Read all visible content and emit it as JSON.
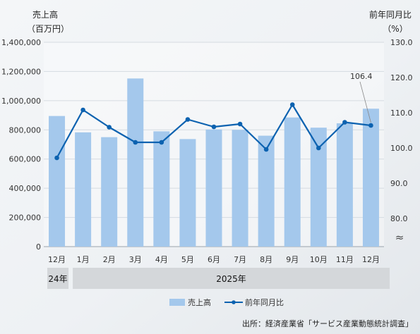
{
  "chart_data": {
    "type": "bar+line",
    "categories": [
      "12月",
      "1月",
      "2月",
      "3月",
      "4月",
      "5月",
      "6月",
      "7月",
      "8月",
      "9月",
      "10月",
      "11月",
      "12月"
    ],
    "year_groups": [
      {
        "label": "24年",
        "count": 1
      },
      {
        "label": "2025年",
        "count": 12
      }
    ],
    "series": [
      {
        "name": "売上高",
        "kind": "bar",
        "axis": "left",
        "color": "#a4c8ec",
        "values": [
          895000,
          783000,
          750000,
          1152000,
          790000,
          737000,
          803000,
          800000,
          760000,
          885000,
          815000,
          845000,
          945000
        ]
      },
      {
        "name": "前年同月比",
        "kind": "line",
        "axis": "right",
        "color": "#0c62b0",
        "values": [
          97.2,
          110.8,
          105.9,
          101.6,
          101.6,
          108.1,
          106.0,
          106.8,
          99.6,
          112.3,
          100.0,
          107.3,
          106.4
        ]
      }
    ],
    "y_left": {
      "title_line1": "売上高",
      "title_line2": "（百万円）",
      "min": 0,
      "max": 1400000,
      "ticks": [
        "0",
        "200,000",
        "400,000",
        "600,000",
        "800,000",
        "1,000,000",
        "1,200,000",
        "1,400,000"
      ]
    },
    "y_right": {
      "title_line1": "前年同月比",
      "title_line2": "（%）",
      "min": 72.0,
      "max": 130.0,
      "ticks": [
        {
          "value": 80.0,
          "label": "80.0"
        },
        {
          "value": 90.0,
          "label": "90.0"
        },
        {
          "value": 100.0,
          "label": "100.0"
        },
        {
          "value": 110.0,
          "label": "110.0"
        },
        {
          "value": 120.0,
          "label": "120.0"
        },
        {
          "value": 130.0,
          "label": "130.0"
        }
      ],
      "break_symbol": "≈"
    },
    "annotation": {
      "text": "106.4",
      "series": "前年同月比",
      "index": 12
    },
    "legend": {
      "position": "bottom"
    },
    "grid": true,
    "source": "出所：経済産業省「サービス産業動態統計調査」"
  }
}
